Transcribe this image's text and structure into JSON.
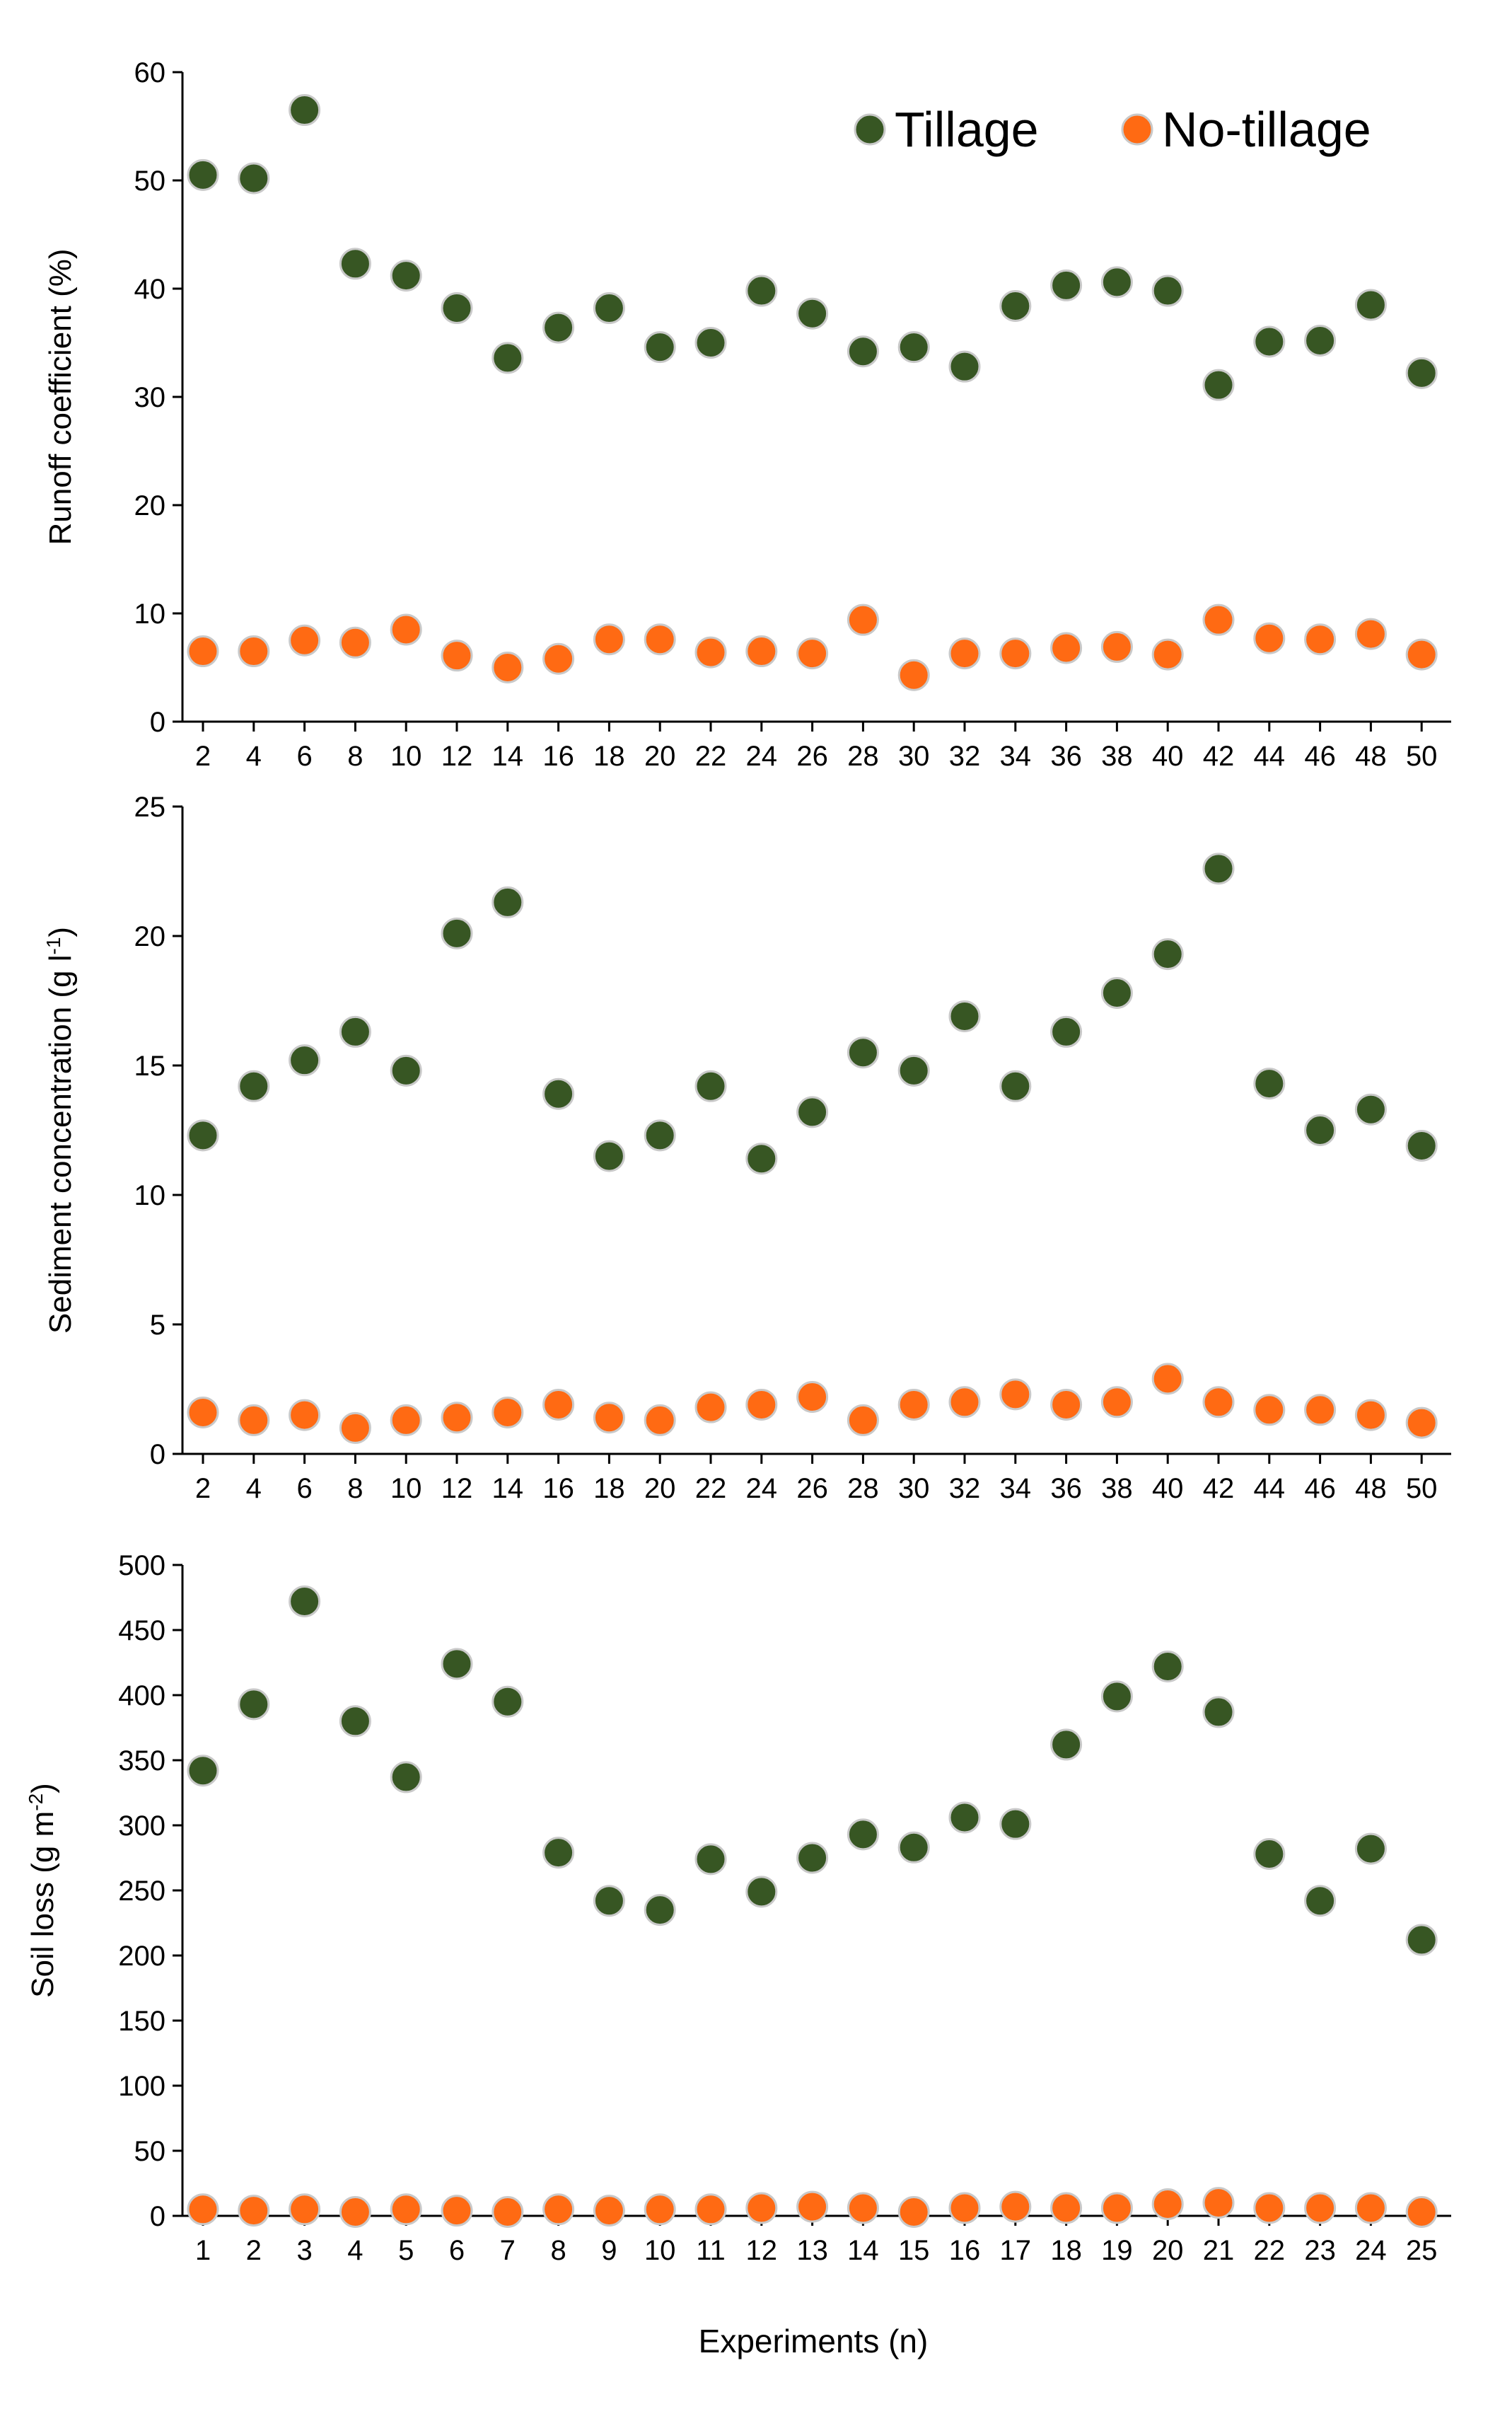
{
  "colors": {
    "tillage": "#375623",
    "no_tillage": "#ff6a13",
    "outline": "#c9c9c9"
  },
  "legend": {
    "tillage": "Tillage",
    "no_tillage": "No-tillage",
    "placement": "top-right"
  },
  "xlabel": "Experiments (n)",
  "chart_data": [
    {
      "type": "scatter",
      "ylabel": "Runoff coefficient (%)",
      "ylim": [
        0,
        60
      ],
      "yticks": [
        0,
        10,
        20,
        30,
        40,
        50,
        60
      ],
      "categories": [
        "2",
        "4",
        "6",
        "8",
        "10",
        "12",
        "14",
        "16",
        "18",
        "20",
        "22",
        "24",
        "26",
        "28",
        "30",
        "32",
        "34",
        "36",
        "38",
        "40",
        "42",
        "44",
        "46",
        "48",
        "50"
      ],
      "series": [
        {
          "name": "Tillage",
          "values": [
            50.5,
            50.2,
            56.5,
            42.3,
            41.2,
            38.2,
            33.6,
            36.4,
            38.2,
            34.6,
            35.0,
            39.8,
            37.7,
            34.2,
            34.6,
            32.8,
            38.4,
            40.3,
            40.6,
            39.8,
            31.1,
            35.1,
            35.2,
            38.5,
            32.2
          ]
        },
        {
          "name": "No-tillage",
          "values": [
            6.5,
            6.5,
            7.5,
            7.3,
            8.5,
            6.1,
            5.0,
            5.8,
            7.6,
            7.6,
            6.4,
            6.5,
            6.3,
            9.4,
            4.3,
            6.3,
            6.3,
            6.8,
            6.9,
            6.2,
            9.4,
            7.7,
            7.6,
            8.1,
            6.2
          ]
        }
      ]
    },
    {
      "type": "scatter",
      "ylabel": "Sediment concentration (g l",
      "ylabel_sup": "-1",
      "ylabel_end": ")",
      "ylim": [
        0,
        25
      ],
      "yticks": [
        0,
        5,
        10,
        15,
        20,
        25
      ],
      "categories": [
        "2",
        "4",
        "6",
        "8",
        "10",
        "12",
        "14",
        "16",
        "18",
        "20",
        "22",
        "24",
        "26",
        "28",
        "30",
        "32",
        "34",
        "36",
        "38",
        "40",
        "42",
        "44",
        "46",
        "48",
        "50"
      ],
      "series": [
        {
          "name": "Tillage",
          "values": [
            12.3,
            14.2,
            15.2,
            16.3,
            14.8,
            20.1,
            21.3,
            13.9,
            11.5,
            12.3,
            14.2,
            11.4,
            13.2,
            15.5,
            14.8,
            16.9,
            14.2,
            16.3,
            17.8,
            19.3,
            22.6,
            14.3,
            12.5,
            13.3,
            11.9
          ]
        },
        {
          "name": "No-tillage",
          "values": [
            1.6,
            1.3,
            1.5,
            1.0,
            1.3,
            1.4,
            1.6,
            1.9,
            1.4,
            1.3,
            1.8,
            1.9,
            2.2,
            1.3,
            1.9,
            2.0,
            2.3,
            1.9,
            2.0,
            2.9,
            2.0,
            1.7,
            1.7,
            1.5,
            1.2
          ]
        }
      ]
    },
    {
      "type": "scatter",
      "ylabel": "Soil loss (g m",
      "ylabel_sup": "-2",
      "ylabel_end": ")",
      "ylim": [
        0,
        500
      ],
      "yticks": [
        0,
        50,
        100,
        150,
        200,
        250,
        300,
        350,
        400,
        450,
        500
      ],
      "categories": [
        "1",
        "2",
        "3",
        "4",
        "5",
        "6",
        "7",
        "8",
        "9",
        "10",
        "11",
        "12",
        "13",
        "14",
        "15",
        "16",
        "17",
        "18",
        "19",
        "20",
        "21",
        "22",
        "23",
        "24",
        "25"
      ],
      "series": [
        {
          "name": "Tillage",
          "values": [
            342,
            393,
            472,
            380,
            337,
            424,
            395,
            279,
            242,
            235,
            274,
            249,
            275,
            293,
            283,
            306,
            301,
            362,
            399,
            422,
            387,
            278,
            242,
            282,
            212
          ]
        },
        {
          "name": "No-tillage",
          "values": [
            5,
            4,
            5,
            3,
            5,
            4,
            3,
            5,
            4,
            5,
            5,
            6,
            7,
            6,
            3,
            6,
            7,
            6,
            6,
            9,
            10,
            6,
            6,
            6,
            3
          ]
        }
      ]
    }
  ]
}
